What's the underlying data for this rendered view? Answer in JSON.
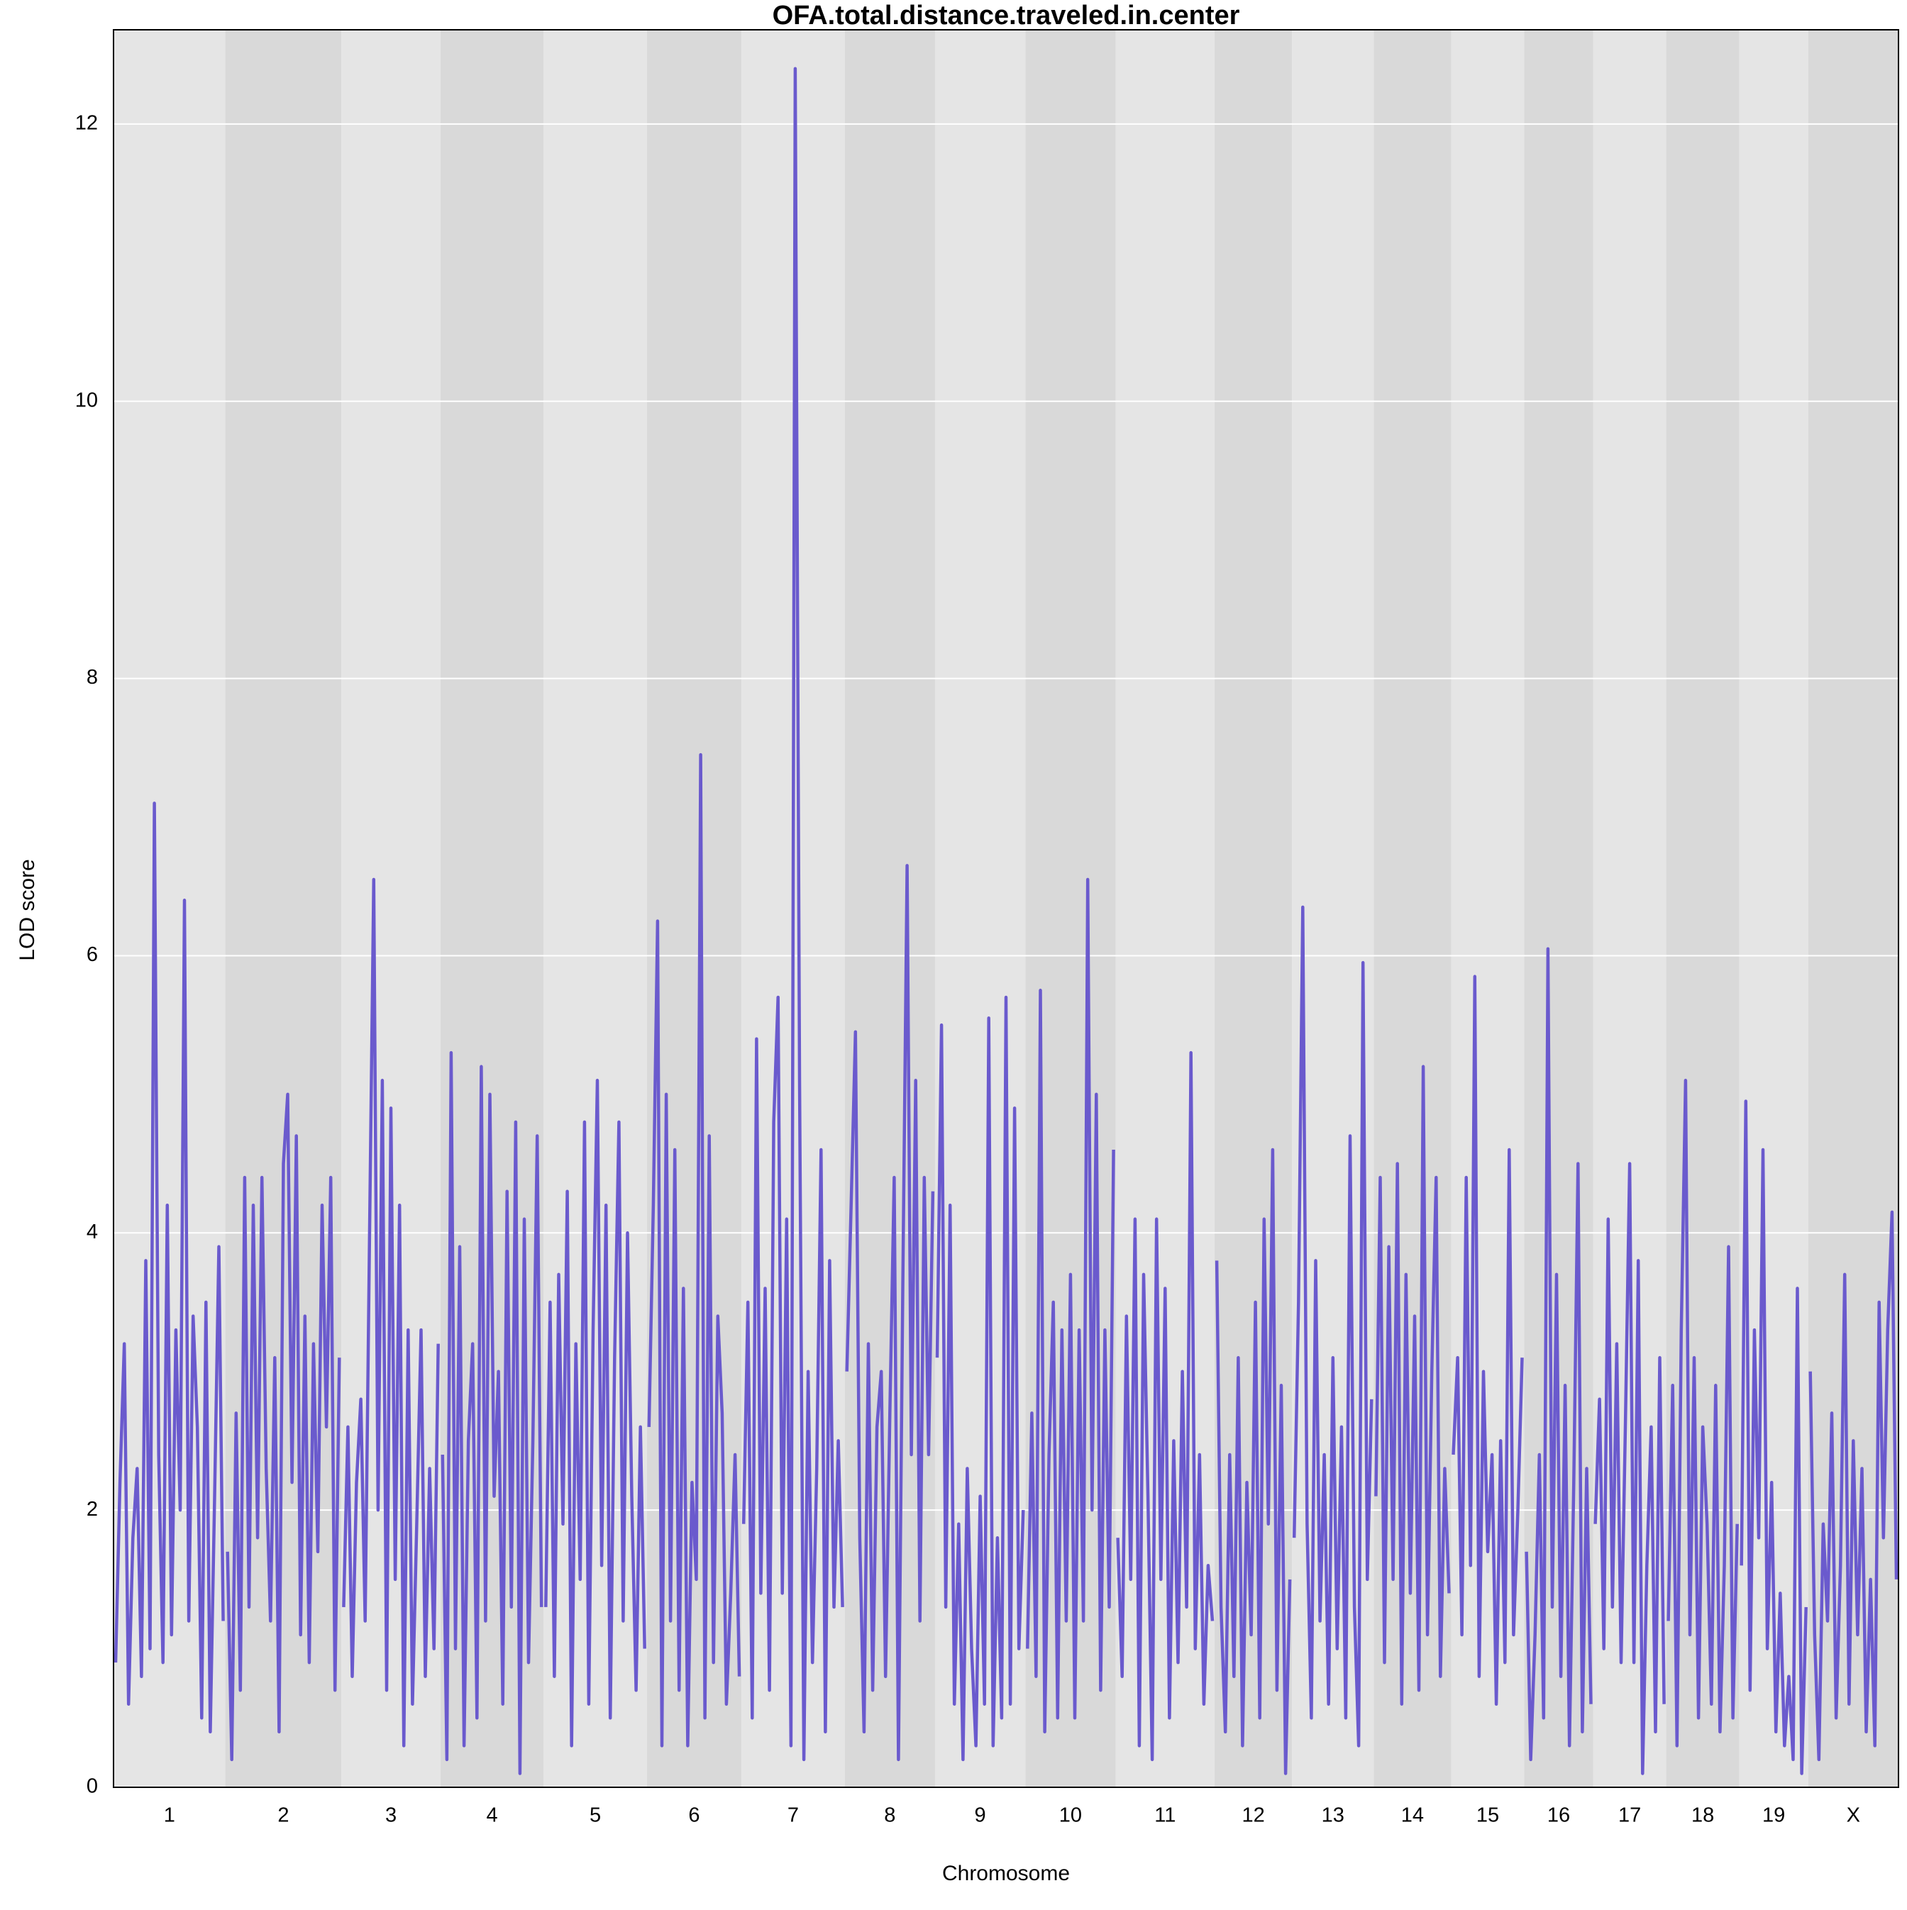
{
  "chart_data": {
    "type": "lod",
    "title": "OFA.total.distance.traveled.in.center",
    "x_label": "Chromosome",
    "y_label": "LOD score",
    "color": "#6a5acd",
    "band_colors": [
      "#e5e5e5",
      "#d9d9d9"
    ],
    "grid": true,
    "ylim": [
      0,
      12.68
    ],
    "yticks": [
      0,
      2,
      4,
      6,
      8,
      10,
      12
    ],
    "categories": [
      "1",
      "2",
      "3",
      "4",
      "5",
      "6",
      "7",
      "8",
      "9",
      "10",
      "11",
      "12",
      "13",
      "14",
      "15",
      "16",
      "17",
      "18",
      "19",
      "X"
    ],
    "values": [
      [
        0.9,
        2.2,
        3.2,
        0.6,
        1.8,
        2.3,
        0.8,
        3.8,
        1.0,
        7.1,
        2.4,
        0.9,
        4.2,
        1.1,
        3.3,
        2.0,
        6.4,
        1.2,
        3.4,
        2.6,
        0.5,
        3.5,
        0.4,
        2.1,
        3.9,
        1.2
      ],
      [
        1.7,
        0.2,
        2.7,
        0.7,
        4.4,
        1.3,
        4.2,
        1.8,
        4.4,
        2.3,
        1.2,
        3.1,
        0.4,
        4.5,
        5.0,
        2.2,
        4.7,
        1.1,
        3.4,
        0.9,
        3.2,
        1.7,
        4.2,
        2.6,
        4.4,
        0.7,
        3.1
      ],
      [
        1.3,
        2.6,
        0.8,
        2.2,
        2.8,
        1.2,
        3.9,
        6.55,
        2.0,
        5.1,
        0.7,
        4.9,
        1.5,
        4.2,
        0.3,
        3.3,
        0.6,
        1.9,
        3.3,
        0.8,
        2.3,
        1.0,
        3.2
      ],
      [
        2.4,
        0.2,
        5.3,
        1.0,
        3.9,
        0.3,
        2.5,
        3.2,
        0.5,
        5.2,
        1.2,
        5.0,
        2.1,
        3.0,
        0.6,
        4.3,
        1.3,
        4.8,
        0.1,
        4.1,
        0.9,
        2.5,
        4.7,
        1.3
      ],
      [
        1.3,
        3.5,
        0.8,
        3.7,
        1.9,
        4.3,
        0.3,
        3.2,
        1.5,
        4.8,
        0.6,
        3.3,
        5.1,
        1.6,
        4.2,
        0.5,
        3.1,
        4.8,
        1.2,
        4.0,
        2.1,
        0.7,
        2.6,
        1.0
      ],
      [
        2.6,
        4.2,
        6.25,
        0.3,
        5.0,
        1.2,
        4.6,
        0.7,
        3.6,
        0.3,
        2.2,
        1.5,
        7.45,
        0.5,
        4.7,
        0.9,
        3.4,
        2.7,
        0.6,
        1.4,
        2.4,
        0.8
      ],
      [
        1.9,
        3.5,
        0.5,
        5.4,
        1.4,
        3.6,
        0.7,
        4.8,
        5.7,
        1.4,
        4.1,
        0.3,
        12.4,
        5.1,
        0.2,
        3.0,
        0.9,
        2.3,
        4.6,
        0.4,
        3.8,
        1.3,
        2.5,
        1.3
      ],
      [
        3.0,
        4.2,
        5.45,
        1.8,
        0.4,
        3.2,
        0.7,
        2.6,
        3.0,
        0.8,
        2.7,
        4.4,
        0.2,
        3.6,
        6.65,
        2.4,
        5.1,
        1.2,
        4.4,
        2.4,
        4.3
      ],
      [
        3.1,
        5.5,
        1.3,
        4.2,
        0.6,
        1.9,
        0.2,
        2.3,
        1.0,
        0.3,
        2.1,
        0.6,
        5.55,
        0.3,
        1.8,
        0.5,
        5.7,
        0.6,
        4.9,
        1.0,
        2.0
      ],
      [
        1.0,
        2.7,
        0.8,
        5.75,
        0.4,
        2.4,
        3.5,
        0.5,
        3.3,
        1.2,
        3.7,
        0.5,
        3.3,
        1.2,
        6.55,
        2.0,
        5.0,
        0.7,
        3.3,
        1.3,
        4.6
      ],
      [
        1.8,
        0.8,
        3.4,
        1.5,
        4.1,
        0.3,
        3.7,
        2.1,
        0.2,
        4.1,
        1.5,
        3.6,
        0.5,
        2.5,
        0.9,
        3.0,
        1.3,
        5.3,
        1.0,
        2.4,
        0.6,
        1.6,
        1.2
      ],
      [
        3.8,
        1.3,
        0.4,
        2.4,
        0.8,
        3.1,
        0.3,
        2.2,
        1.1,
        3.5,
        0.5,
        4.1,
        1.9,
        4.6,
        0.7,
        2.9,
        0.1,
        1.5
      ],
      [
        1.8,
        3.5,
        6.35,
        1.9,
        0.5,
        3.8,
        1.2,
        2.4,
        0.6,
        3.1,
        1.0,
        2.6,
        0.5,
        4.7,
        1.3,
        0.3,
        5.95,
        1.5,
        2.8
      ],
      [
        2.1,
        4.4,
        0.9,
        3.9,
        1.5,
        4.5,
        0.6,
        3.7,
        1.4,
        3.4,
        0.7,
        5.2,
        1.1,
        3.0,
        4.4,
        0.8,
        2.3,
        1.4
      ],
      [
        2.4,
        3.1,
        1.1,
        4.4,
        1.6,
        5.85,
        0.8,
        3.0,
        1.7,
        2.4,
        0.6,
        2.5,
        0.9,
        4.6,
        1.1,
        2.0,
        3.1
      ],
      [
        1.7,
        0.2,
        1.1,
        2.4,
        0.5,
        6.05,
        1.3,
        3.7,
        0.8,
        2.9,
        0.3,
        2.2,
        4.5,
        0.4,
        2.3,
        0.6
      ],
      [
        1.9,
        2.8,
        1.0,
        4.1,
        1.3,
        3.2,
        0.9,
        2.6,
        4.5,
        0.9,
        3.8,
        0.1,
        1.6,
        2.6,
        0.4,
        3.1,
        0.6
      ],
      [
        1.2,
        2.9,
        0.3,
        3.3,
        5.1,
        1.1,
        3.1,
        0.5,
        2.6,
        1.9,
        0.6,
        2.9,
        0.4,
        1.6,
        3.9,
        0.5,
        1.9
      ],
      [
        1.6,
        4.95,
        0.7,
        3.3,
        1.8,
        4.6,
        1.0,
        2.2,
        0.4,
        1.4,
        0.3,
        0.8,
        0.2,
        3.6,
        0.1,
        1.3
      ],
      [
        3.0,
        1.1,
        0.2,
        1.9,
        1.2,
        2.7,
        0.5,
        1.6,
        3.7,
        0.6,
        2.5,
        1.1,
        2.3,
        0.4,
        1.5,
        0.3,
        3.5,
        1.8,
        3.3,
        4.15,
        1.5
      ]
    ]
  }
}
